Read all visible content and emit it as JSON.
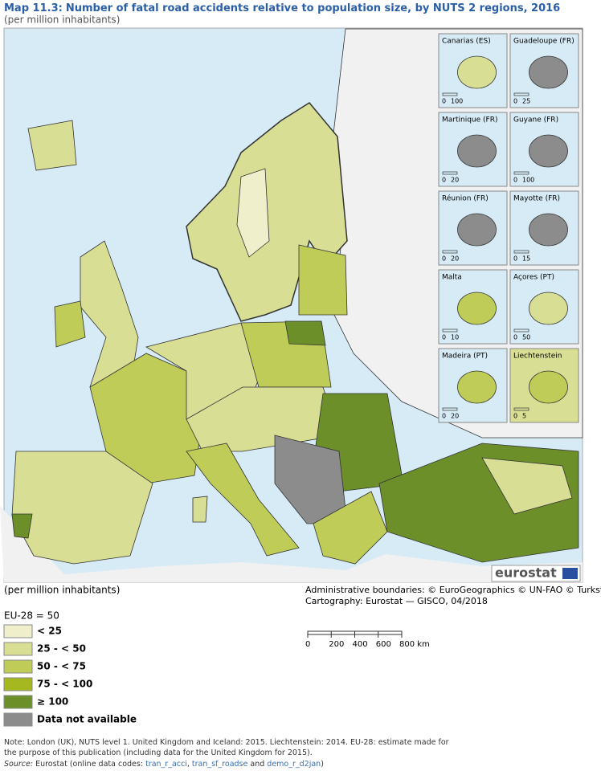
{
  "header": {
    "label": "Map 11.3:",
    "title": "Number of fatal road accidents relative to population size, by NUTS 2 regions, 2016",
    "subtitle": "(per million inhabitants)"
  },
  "insets": [
    {
      "name": "Canarias (ES)",
      "scale": [
        "0",
        "100"
      ]
    },
    {
      "name": "Guadeloupe (FR)",
      "scale": [
        "0",
        "25"
      ]
    },
    {
      "name": "Martinique (FR)",
      "scale": [
        "0",
        "20"
      ]
    },
    {
      "name": "Guyane (FR)",
      "scale": [
        "0",
        "100"
      ]
    },
    {
      "name": "Réunion (FR)",
      "scale": [
        "0",
        "20"
      ]
    },
    {
      "name": "Mayotte (FR)",
      "scale": [
        "0",
        "15"
      ]
    },
    {
      "name": "Malta",
      "scale": [
        "0",
        "10"
      ]
    },
    {
      "name": "Açores (PT)",
      "scale": [
        "0",
        "50"
      ]
    },
    {
      "name": "Madeira (PT)",
      "scale": [
        "0",
        "20"
      ]
    },
    {
      "name": "Liechtenstein",
      "scale": [
        "0",
        "5"
      ]
    }
  ],
  "logo": "eurostat",
  "legend": {
    "unit": "(per million inhabitants)",
    "reference": "EU-28 = 50",
    "items": [
      {
        "label": "< 25",
        "color": "#efefcb"
      },
      {
        "label": "25 - < 50",
        "color": "#d8de94"
      },
      {
        "label": "50 - < 75",
        "color": "#c0cc58"
      },
      {
        "label": "75 - < 100",
        "color": "#a5b820"
      },
      {
        "label": "≥ 100",
        "color": "#6c8f2a"
      },
      {
        "label": "Data not available",
        "color": "#8c8c8c"
      }
    ]
  },
  "credits": [
    "Administrative boundaries: © EuroGeographics © UN-FAO © Turkstat",
    "Cartography: Eurostat — GISCO, 04/2018"
  ],
  "scale_bar": [
    "0",
    "200",
    "400",
    "600",
    "800 km"
  ],
  "note": "Note: London (UK), NUTS level 1. United Kingdom and Iceland: 2015. Liechtenstein: 2014. EU-28: estimate made for the purpose of this publication (including data for the United Kingdom for 2015).",
  "source": {
    "label": "Source:",
    "text": "Eurostat (online data codes:",
    "codes": [
      "tran_r_acci",
      "tran_sf_roadse",
      "demo_r_d2jan"
    ],
    "and": "and"
  }
}
